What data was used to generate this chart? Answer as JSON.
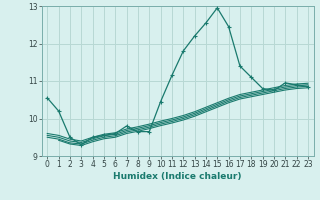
{
  "xlabel": "Humidex (Indice chaleur)",
  "background_color": "#d8f0ee",
  "grid_color": "#b8d8d4",
  "line_color": "#1a7a6e",
  "xlim": [
    -0.5,
    23.5
  ],
  "ylim": [
    9,
    13
  ],
  "xticks": [
    0,
    1,
    2,
    3,
    4,
    5,
    6,
    7,
    8,
    9,
    10,
    11,
    12,
    13,
    14,
    15,
    16,
    17,
    18,
    19,
    20,
    21,
    22,
    23
  ],
  "yticks": [
    9,
    10,
    11,
    12,
    13
  ],
  "lines": [
    {
      "x": [
        0,
        1,
        2,
        3,
        4,
        5,
        6,
        7,
        8,
        9,
        10,
        11,
        12,
        13,
        14,
        15,
        16,
        17,
        18,
        19,
        20,
        21,
        22,
        23
      ],
      "y": [
        10.55,
        10.2,
        9.5,
        9.3,
        9.5,
        9.55,
        9.6,
        9.8,
        9.65,
        9.65,
        10.45,
        11.15,
        11.8,
        12.2,
        12.55,
        12.95,
        12.45,
        11.4,
        11.1,
        10.8,
        10.75,
        10.95,
        10.9,
        10.85
      ],
      "marker": true
    },
    {
      "x": [
        0,
        1,
        2,
        3,
        4,
        5,
        6,
        7,
        8,
        9,
        10,
        11,
        12,
        13,
        14,
        15,
        16,
        17,
        18,
        19,
        20,
        21,
        22,
        23
      ],
      "y": [
        9.6,
        9.55,
        9.45,
        9.4,
        9.5,
        9.58,
        9.62,
        9.72,
        9.78,
        9.85,
        9.93,
        10.0,
        10.08,
        10.18,
        10.3,
        10.42,
        10.54,
        10.64,
        10.7,
        10.76,
        10.82,
        10.88,
        10.92,
        10.94
      ],
      "marker": false
    },
    {
      "x": [
        0,
        1,
        2,
        3,
        4,
        5,
        6,
        7,
        8,
        9,
        10,
        11,
        12,
        13,
        14,
        15,
        16,
        17,
        18,
        19,
        20,
        21,
        22,
        23
      ],
      "y": [
        9.55,
        9.5,
        9.4,
        9.36,
        9.46,
        9.54,
        9.58,
        9.68,
        9.74,
        9.81,
        9.89,
        9.96,
        10.04,
        10.14,
        10.26,
        10.38,
        10.5,
        10.6,
        10.66,
        10.72,
        10.78,
        10.84,
        10.88,
        10.9
      ],
      "marker": false
    },
    {
      "x": [
        0,
        1,
        2,
        3,
        4,
        5,
        6,
        7,
        8,
        9,
        10,
        11,
        12,
        13,
        14,
        15,
        16,
        17,
        18,
        19,
        20,
        21,
        22,
        23
      ],
      "y": [
        9.5,
        9.45,
        9.35,
        9.32,
        9.42,
        9.5,
        9.54,
        9.64,
        9.7,
        9.77,
        9.85,
        9.92,
        10.0,
        10.1,
        10.22,
        10.34,
        10.46,
        10.56,
        10.62,
        10.68,
        10.74,
        10.8,
        10.84,
        10.86
      ],
      "marker": false
    },
    {
      "x": [
        1,
        2,
        3,
        4,
        5,
        6,
        7,
        8,
        9,
        10,
        11,
        12,
        13,
        14,
        15,
        16,
        17,
        18,
        19,
        20,
        21,
        22,
        23
      ],
      "y": [
        9.42,
        9.32,
        9.28,
        9.38,
        9.46,
        9.5,
        9.6,
        9.66,
        9.73,
        9.81,
        9.88,
        9.96,
        10.06,
        10.18,
        10.3,
        10.42,
        10.52,
        10.58,
        10.64,
        10.7,
        10.76,
        10.8,
        10.82
      ],
      "marker": false
    }
  ]
}
